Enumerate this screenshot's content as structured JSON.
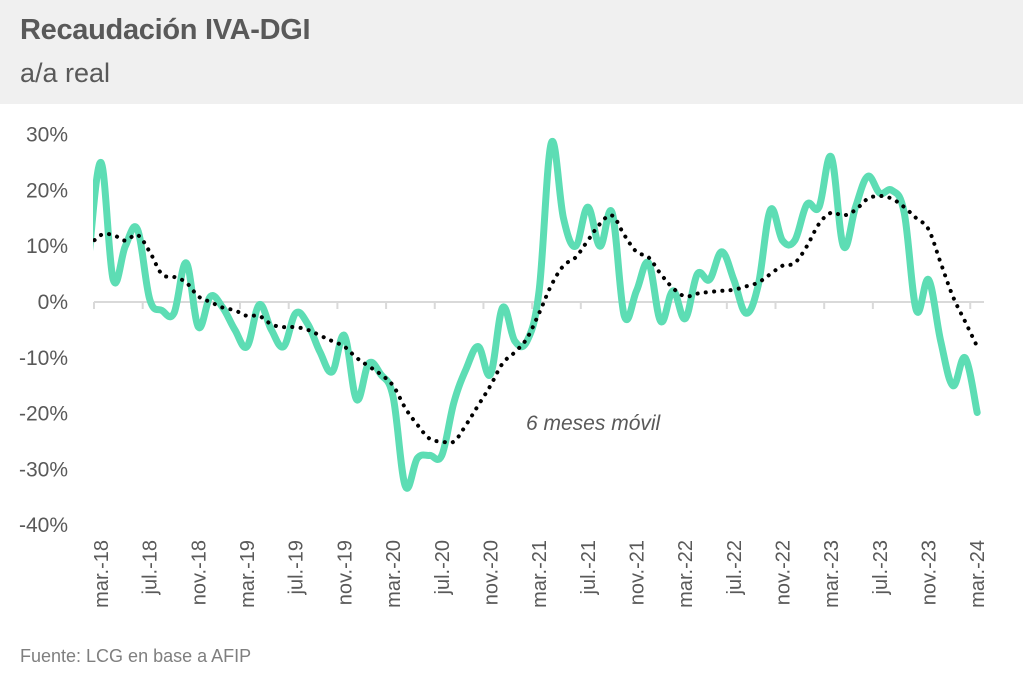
{
  "chart_data": {
    "type": "line",
    "title": "Recaudación IVA-DGI",
    "subtitle": "a/a real",
    "xlabel": "",
    "ylabel": "",
    "ylim": [
      -40,
      30
    ],
    "y_ticks": [
      30,
      20,
      10,
      0,
      -10,
      -20,
      -30,
      -40
    ],
    "y_tick_labels": [
      "30%",
      "20%",
      "10%",
      "0%",
      "-10%",
      "-20%",
      "-30%",
      "-40%"
    ],
    "x_tick_labels": [
      "mar.-18",
      "jul.-18",
      "nov.-18",
      "mar.-19",
      "jul.-19",
      "nov.-19",
      "mar.-20",
      "jul.-20",
      "nov.-20",
      "mar.-21",
      "jul.-21",
      "nov.-21",
      "mar.-22",
      "jul.-22",
      "nov.-22",
      "mar.-23",
      "jul.-23",
      "nov.-23",
      "mar.-24"
    ],
    "x_start": "mar.-18",
    "x_end": "mar.-24",
    "frequency": "monthly",
    "grid": false,
    "series": [
      {
        "name": "IVA-DGI a/a real",
        "color": "#5dddb4",
        "style": "solid",
        "values": [
          25,
          4,
          10,
          13,
          0.5,
          -1.5,
          -2,
          7,
          -4.5,
          1,
          -1,
          -5,
          -8,
          -0.5,
          -5,
          -8,
          -2,
          -4,
          -9,
          -12.5,
          -6,
          -17.5,
          -11,
          -13,
          -17,
          -33,
          -28,
          -27.5,
          -27.5,
          -18,
          -12,
          -8,
          -13,
          -1,
          -7,
          -7,
          2,
          28.5,
          15,
          10,
          17,
          10,
          16,
          -2.5,
          2,
          7,
          -3.5,
          2,
          -3,
          5,
          4,
          9,
          4,
          -2,
          3,
          16.5,
          11,
          11,
          17.5,
          17,
          26,
          10,
          17,
          22.5,
          19.5,
          20,
          16,
          -1.5,
          4,
          -7,
          -15,
          -10,
          -19.8
        ]
      },
      {
        "name": "6 meses móvil",
        "color": "#000000",
        "style": "dotted",
        "values": [
          12,
          12,
          11,
          12,
          9,
          5,
          4.5,
          3.5,
          1,
          0,
          -1,
          -1.5,
          -2.5,
          -2.5,
          -4,
          -4.5,
          -4.5,
          -5,
          -6,
          -7,
          -8,
          -10,
          -11.5,
          -13,
          -15,
          -19,
          -22,
          -24.5,
          -25,
          -25,
          -22,
          -18.5,
          -15,
          -11,
          -9,
          -6.5,
          -2,
          3,
          6.5,
          8,
          11,
          14,
          15.5,
          12,
          9,
          8,
          5,
          2.5,
          1,
          1.5,
          1.8,
          2,
          2.2,
          2.8,
          3.5,
          5,
          6.5,
          7,
          10,
          14,
          16,
          15.5,
          16.5,
          18.5,
          19,
          18.5,
          17,
          15,
          13,
          7,
          1,
          -3.5,
          -8
        ]
      }
    ],
    "annotations": [
      {
        "text": "6 meses móvil",
        "refers_to": "6 meses móvil"
      }
    ],
    "source": "Fuente: LCG en base a AFIP"
  }
}
